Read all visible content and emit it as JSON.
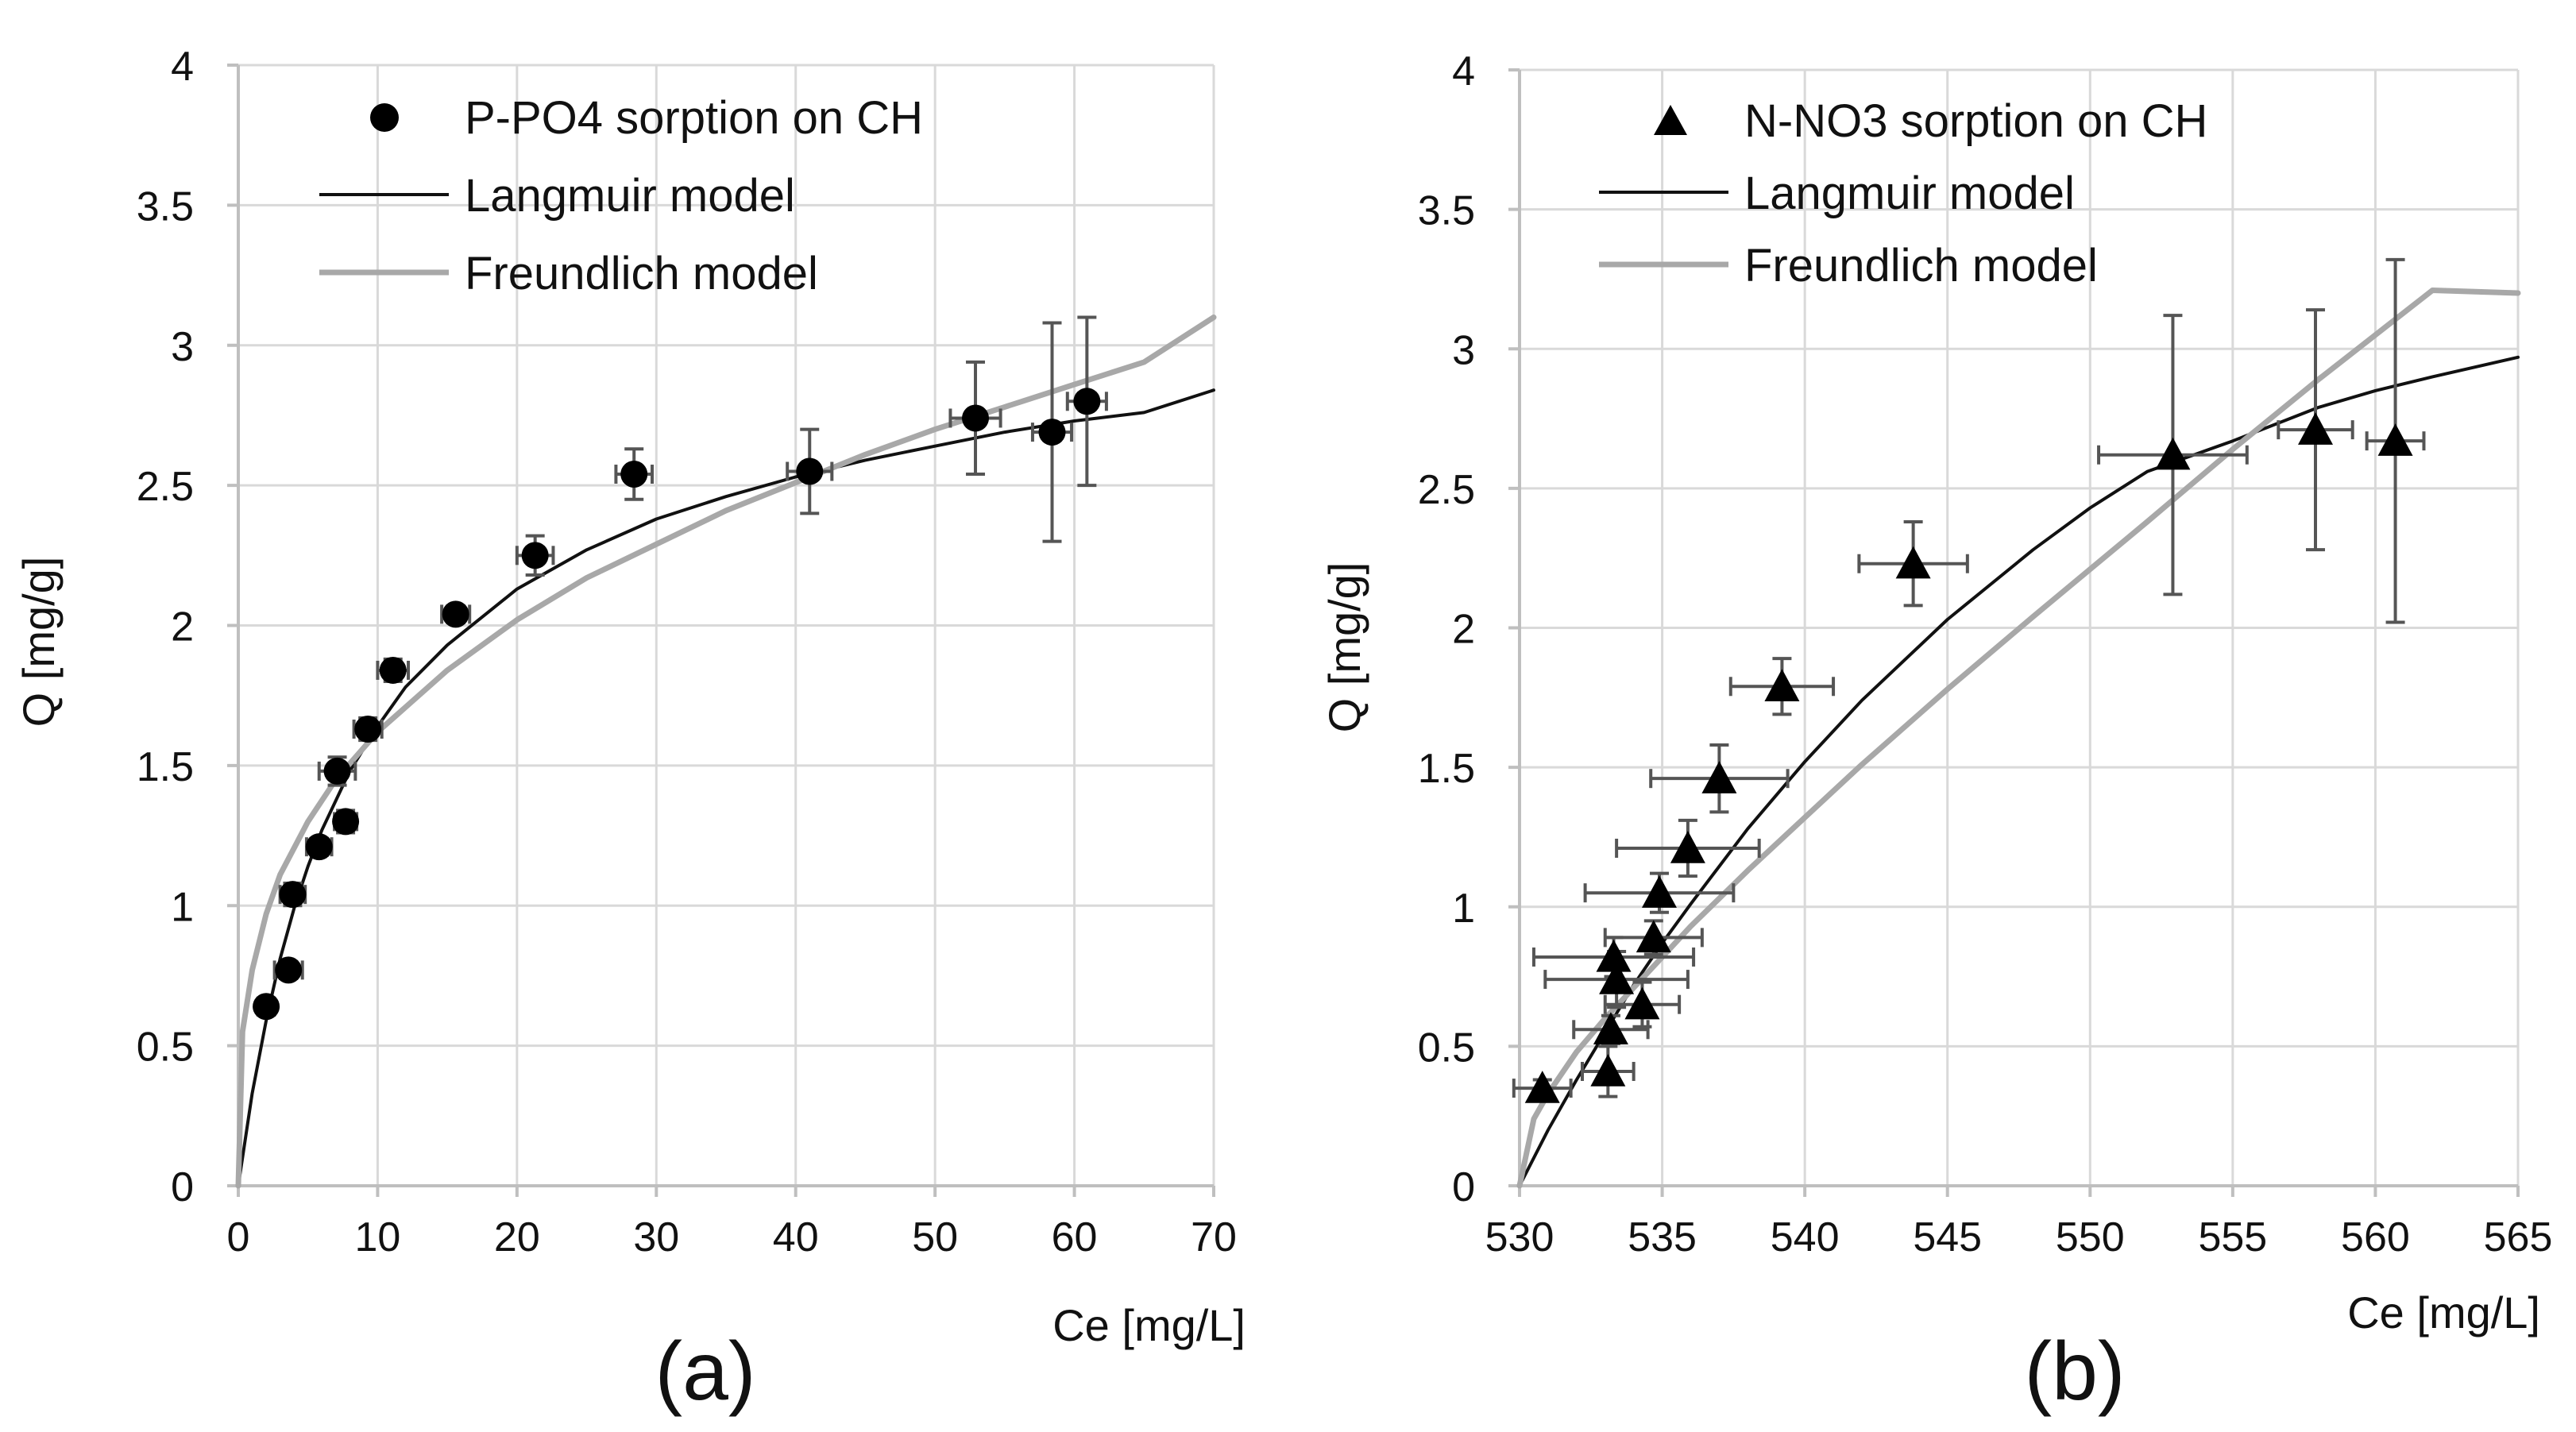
{
  "colors": {
    "langmuir": "#111111",
    "freundlich": "#a8a8a8",
    "marker": "#000000",
    "errorbar": "#555555",
    "grid": "#d9d9d9",
    "axis": "#bfbfbf"
  },
  "chart_data": [
    {
      "id": "a",
      "type": "scatter",
      "panel_label": "(a)",
      "xlabel": "Ce [mg/L]",
      "ylabel": "Q [mg/g]",
      "xlim": [
        0,
        70
      ],
      "ylim": [
        0,
        4
      ],
      "xticks": [
        0,
        10,
        20,
        30,
        40,
        50,
        60,
        70
      ],
      "yticks": [
        0,
        0.5,
        1,
        1.5,
        2,
        2.5,
        3,
        3.5,
        4
      ],
      "xtick_labels": [
        "0",
        "10",
        "20",
        "30",
        "40",
        "50",
        "60",
        "70"
      ],
      "ytick_labels": [
        "0",
        "0.5",
        "1",
        "1.5",
        "2",
        "2.5",
        "3",
        "3.5",
        "4"
      ],
      "legend_position": "top-left",
      "grid": true,
      "series": [
        {
          "name": "P-PO4 sorption on CH",
          "kind": "points",
          "marker": "circle",
          "x": [
            2.0,
            3.6,
            3.9,
            5.8,
            7.1,
            7.7,
            9.3,
            11.1,
            15.6,
            21.3,
            28.4,
            41.0,
            52.9,
            58.4,
            60.9
          ],
          "y": [
            0.64,
            0.77,
            1.04,
            1.21,
            1.48,
            1.3,
            1.63,
            1.84,
            2.04,
            2.25,
            2.54,
            2.55,
            2.74,
            2.69,
            2.8
          ],
          "x_err": [
            0.6,
            1.0,
            0.9,
            0.9,
            1.3,
            0.8,
            1.0,
            1.1,
            1.0,
            1.3,
            1.3,
            1.6,
            1.8,
            1.4,
            1.4
          ],
          "y_err": [
            0.03,
            0.03,
            0.04,
            0.03,
            0.05,
            0.04,
            0.04,
            0.04,
            0.03,
            0.07,
            0.09,
            0.15,
            0.2,
            0.39,
            0.3
          ]
        },
        {
          "name": "Langmuir model",
          "kind": "line",
          "x": [
            0,
            1,
            2,
            3,
            4,
            5,
            6,
            8,
            10,
            12,
            15,
            20,
            25,
            30,
            35,
            40,
            45,
            50,
            55,
            60,
            65,
            70
          ],
          "y": [
            0,
            0.33,
            0.59,
            0.81,
            0.99,
            1.14,
            1.27,
            1.48,
            1.64,
            1.78,
            1.93,
            2.13,
            2.27,
            2.38,
            2.46,
            2.53,
            2.59,
            2.64,
            2.69,
            2.73,
            2.76,
            2.84
          ]
        },
        {
          "name": "Freundlich model",
          "kind": "line",
          "x": [
            0,
            0.3,
            1,
            2,
            3,
            5,
            7,
            10,
            15,
            20,
            25,
            30,
            35,
            40,
            45,
            50,
            55,
            60,
            65,
            70
          ],
          "y": [
            0,
            0.55,
            0.77,
            0.97,
            1.11,
            1.3,
            1.45,
            1.62,
            1.84,
            2.02,
            2.17,
            2.29,
            2.41,
            2.51,
            2.61,
            2.7,
            2.78,
            2.86,
            2.94,
            3.1
          ]
        }
      ]
    },
    {
      "id": "b",
      "type": "scatter",
      "panel_label": "(b)",
      "xlabel": "Ce [mg/L]",
      "ylabel": "Q [mg/g]",
      "xlim": [
        530,
        565
      ],
      "ylim": [
        0,
        4
      ],
      "xticks": [
        530,
        535,
        540,
        545,
        550,
        555,
        560,
        565
      ],
      "yticks": [
        0,
        0.5,
        1,
        1.5,
        2,
        2.5,
        3,
        3.5,
        4
      ],
      "xtick_labels": [
        "530",
        "535",
        "540",
        "545",
        "550",
        "555",
        "560",
        "565"
      ],
      "ytick_labels": [
        "0",
        "0.5",
        "1",
        "1.5",
        "2",
        "2.5",
        "3",
        "3.5",
        "4"
      ],
      "legend_position": "top-left",
      "grid": true,
      "series": [
        {
          "name": "N-NO3 sorption on CH",
          "kind": "points",
          "marker": "triangle",
          "x": [
            530.8,
            533.1,
            533.2,
            533.3,
            533.4,
            534.3,
            534.7,
            534.9,
            535.9,
            537.0,
            539.2,
            543.8,
            552.9,
            557.9,
            560.7
          ],
          "y": [
            0.35,
            0.41,
            0.56,
            0.82,
            0.74,
            0.65,
            0.89,
            1.05,
            1.21,
            1.46,
            1.79,
            2.23,
            2.62,
            2.71,
            2.67
          ],
          "x_err": [
            1.0,
            0.9,
            1.3,
            2.8,
            2.5,
            1.3,
            1.7,
            2.6,
            2.5,
            2.4,
            1.8,
            1.9,
            2.6,
            1.3,
            1.0
          ],
          "y_err": [
            0.03,
            0.09,
            0.05,
            0.07,
            0.1,
            0.08,
            0.06,
            0.07,
            0.1,
            0.12,
            0.1,
            0.15,
            0.5,
            0.43,
            0.65
          ]
        },
        {
          "name": "Langmuir model",
          "kind": "line",
          "x": [
            530,
            531,
            532,
            533,
            534,
            535,
            536,
            538,
            540,
            542,
            545,
            548,
            550,
            552,
            555,
            558,
            560,
            562,
            565
          ],
          "y": [
            0,
            0.2,
            0.38,
            0.55,
            0.72,
            0.87,
            1.01,
            1.28,
            1.52,
            1.74,
            2.03,
            2.28,
            2.43,
            2.56,
            2.67,
            2.79,
            2.85,
            2.9,
            2.97
          ]
        },
        {
          "name": "Freundlich model",
          "kind": "line",
          "x": [
            530,
            530.5,
            531,
            532,
            533,
            534,
            535,
            536,
            538,
            540,
            542,
            545,
            548,
            550,
            552,
            555,
            558,
            560,
            562,
            565
          ],
          "y": [
            0,
            0.24,
            0.33,
            0.48,
            0.6,
            0.71,
            0.82,
            0.93,
            1.13,
            1.32,
            1.51,
            1.78,
            2.04,
            2.21,
            2.38,
            2.64,
            2.89,
            3.05,
            3.21,
            3.2
          ]
        }
      ]
    }
  ]
}
